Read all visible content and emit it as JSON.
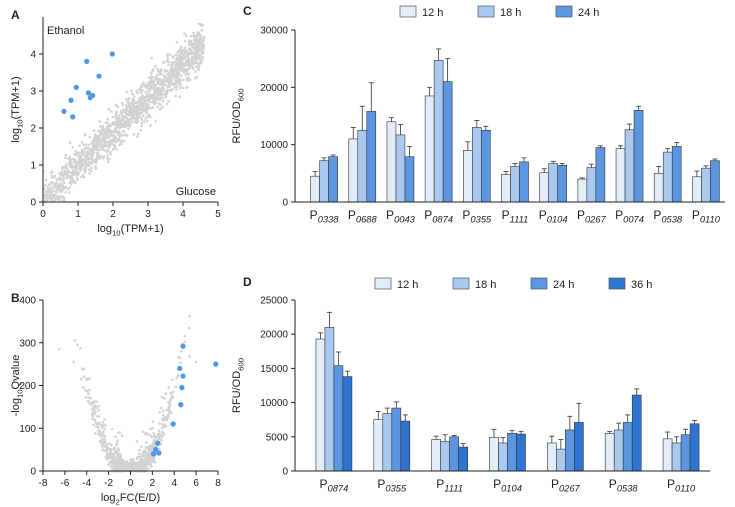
{
  "chart_data": [
    {
      "panel": "A",
      "type": "scatter",
      "xlabel": "log10(TPM+1)",
      "ylabel": "log10(TPM+1)",
      "xlabel_parts": [
        "log",
        "10",
        "(TPM+1)"
      ],
      "ylabel_parts": [
        "log",
        "10",
        "(TPM+1)"
      ],
      "x_axis_title": "Glucose",
      "y_axis_title": "Ethanol",
      "xlim": [
        0,
        5
      ],
      "ylim": [
        0,
        5
      ],
      "xticks": [
        "0",
        "1",
        "2",
        "3",
        "4",
        "5"
      ],
      "yticks": [
        "0",
        "1",
        "2",
        "3",
        "4"
      ],
      "highlight_color": "#4a98e8",
      "background_color": "#d3d3d3",
      "highlight_points": [
        [
          1.25,
          3.8
        ],
        [
          1.98,
          4.0
        ],
        [
          1.6,
          3.4
        ],
        [
          0.95,
          3.1
        ],
        [
          1.3,
          2.95
        ],
        [
          1.42,
          2.88
        ],
        [
          1.35,
          2.82
        ],
        [
          0.8,
          2.75
        ],
        [
          0.6,
          2.45
        ],
        [
          0.85,
          2.3
        ]
      ]
    },
    {
      "panel": "B",
      "type": "scatter",
      "xlabel": "log2FC(E/D)",
      "ylabel": "-log10Qvalue",
      "xlabel_parts": [
        "log",
        "2",
        "FC(E/D)"
      ],
      "ylabel_parts": [
        "-log",
        "10",
        "Qvalue"
      ],
      "xlim": [
        -8,
        8
      ],
      "ylim": [
        0,
        400
      ],
      "xticks": [
        "-8",
        "-6",
        "-4",
        "-2",
        "0",
        "2",
        "4",
        "6",
        "8"
      ],
      "yticks": [
        "0",
        "100",
        "200",
        "300",
        "400"
      ],
      "highlight_color": "#4a98e8",
      "background_color": "#d3d3d3",
      "highlight_points": [
        [
          4.8,
          292
        ],
        [
          7.8,
          250
        ],
        [
          4.5,
          240
        ],
        [
          4.8,
          222
        ],
        [
          4.7,
          195
        ],
        [
          4.6,
          155
        ],
        [
          3.9,
          110
        ],
        [
          2.5,
          65
        ],
        [
          2.3,
          50
        ],
        [
          2.6,
          42
        ],
        [
          2.1,
          40
        ]
      ]
    },
    {
      "panel": "C",
      "type": "bar",
      "ylabel": "RFU/OD600",
      "ylabel_main": "RFU/OD",
      "ylabel_sub": "600",
      "ylim": [
        0,
        30000
      ],
      "yticks": [
        "0",
        "10000",
        "20000",
        "30000"
      ],
      "categories": [
        "0338",
        "0688",
        "0043",
        "0874",
        "0355",
        "1111",
        "0104",
        "0267",
        "0074",
        "0538",
        "0110"
      ],
      "category_prefix": "P",
      "series": [
        {
          "name": "12 h",
          "color": "#e3ecf9",
          "values": [
            4500,
            11000,
            14000,
            18500,
            9000,
            4800,
            5100,
            4000,
            9300,
            5000,
            4400
          ],
          "errors": [
            800,
            2000,
            700,
            1500,
            1500,
            500,
            700,
            200,
            500,
            1200,
            1000
          ]
        },
        {
          "name": "18 h",
          "color": "#a9c9f0",
          "values": [
            7200,
            12500,
            11700,
            24700,
            13000,
            6200,
            6700,
            6000,
            12600,
            8700,
            5900
          ],
          "errors": [
            500,
            4200,
            1800,
            2000,
            1200,
            500,
            400,
            600,
            1000,
            600,
            400
          ]
        },
        {
          "name": "24 h",
          "color": "#5b96e0",
          "values": [
            7900,
            15800,
            7900,
            21000,
            12500,
            7000,
            6400,
            9500,
            16000,
            9700,
            7200
          ],
          "errors": [
            300,
            5000,
            1800,
            4000,
            700,
            700,
            300,
            300,
            700,
            700,
            300
          ]
        }
      ]
    },
    {
      "panel": "D",
      "type": "bar",
      "ylabel": "RFU/OD600",
      "ylabel_main": "RFU/OD",
      "ylabel_sub": "600",
      "ylim": [
        0,
        25000
      ],
      "yticks": [
        "0",
        "5000",
        "10000",
        "15000",
        "20000",
        "25000"
      ],
      "categories": [
        "0874",
        "0355",
        "1111",
        "0104",
        "0267",
        "0538",
        "0110"
      ],
      "category_prefix": "P",
      "series": [
        {
          "name": "12 h",
          "color": "#e3ecf9",
          "values": [
            19300,
            7500,
            4600,
            4900,
            4100,
            5500,
            4700
          ],
          "errors": [
            900,
            1200,
            500,
            1200,
            1000,
            300,
            1000
          ]
        },
        {
          "name": "18 h",
          "color": "#a9c9f0",
          "values": [
            21000,
            8400,
            4300,
            4100,
            3200,
            6000,
            4100
          ],
          "errors": [
            2200,
            800,
            1000,
            800,
            1400,
            1000,
            900
          ]
        },
        {
          "name": "24 h",
          "color": "#5b96e0",
          "values": [
            15400,
            9200,
            5000,
            5500,
            6000,
            7100,
            5300
          ],
          "errors": [
            2000,
            900,
            200,
            400,
            2000,
            1100,
            800
          ]
        },
        {
          "name": "36 h",
          "color": "#2f74d0",
          "values": [
            13800,
            7300,
            3500,
            5400,
            7100,
            11100,
            6900
          ],
          "errors": [
            800,
            900,
            500,
            400,
            2800,
            900,
            500
          ]
        }
      ]
    }
  ],
  "panel_letters": [
    "A",
    "B",
    "C",
    "D"
  ]
}
